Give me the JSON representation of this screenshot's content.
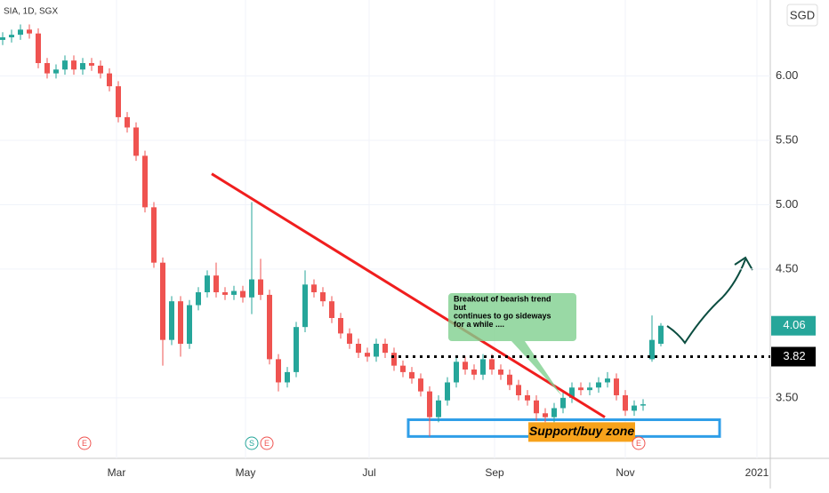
{
  "chart_data": {
    "type": "candlestick",
    "title": "SIA, 1D, SGX",
    "currency": "SGD",
    "up_color": "#26a69a",
    "down_color": "#ef5350",
    "open": [
      6.28,
      6.3,
      6.32,
      6.36,
      6.33,
      6.1,
      6.02,
      6.05,
      6.12,
      6.05,
      6.1,
      6.08,
      6.02,
      5.92,
      5.68,
      5.6,
      5.38,
      4.98,
      4.55,
      3.95,
      4.25,
      3.92,
      4.22,
      4.32,
      4.45,
      4.32,
      4.3,
      4.33,
      4.28,
      4.42,
      4.3,
      3.8,
      3.62,
      3.7,
      4.05,
      4.38,
      4.32,
      4.25,
      4.12,
      4.0,
      3.92,
      3.85,
      3.82,
      3.92,
      3.85,
      3.75,
      3.7,
      3.65,
      3.55,
      3.35,
      3.48,
      3.62,
      3.78,
      3.72,
      3.68,
      3.8,
      3.72,
      3.68,
      3.6,
      3.52,
      3.48,
      3.38,
      3.35,
      3.42,
      3.5,
      3.58,
      3.56,
      3.58,
      3.62,
      3.65,
      3.52,
      3.4,
      3.44,
      3.8,
      3.92
    ],
    "high": [
      6.34,
      6.36,
      6.4,
      6.4,
      6.37,
      6.14,
      6.09,
      6.16,
      6.16,
      6.14,
      6.14,
      6.12,
      6.06,
      5.96,
      5.72,
      5.64,
      5.42,
      5.02,
      4.59,
      4.29,
      4.29,
      4.26,
      4.36,
      4.49,
      4.55,
      4.36,
      4.37,
      4.37,
      5.02,
      4.58,
      4.34,
      3.84,
      3.74,
      4.09,
      4.49,
      4.42,
      4.36,
      4.29,
      4.16,
      4.04,
      3.96,
      3.89,
      3.96,
      3.96,
      3.89,
      3.79,
      3.74,
      3.69,
      3.59,
      3.52,
      3.66,
      3.82,
      3.82,
      3.76,
      3.84,
      3.84,
      3.76,
      3.72,
      3.64,
      3.56,
      3.52,
      3.42,
      3.46,
      3.54,
      3.62,
      3.62,
      3.62,
      3.66,
      3.7,
      3.69,
      3.56,
      3.48,
      3.49,
      4.14,
      4.08
    ],
    "low": [
      6.24,
      6.26,
      6.28,
      6.29,
      6.06,
      5.98,
      5.98,
      6.01,
      6.01,
      6.01,
      6.04,
      5.98,
      5.88,
      5.64,
      5.56,
      5.34,
      4.94,
      4.51,
      3.75,
      3.91,
      3.82,
      3.88,
      4.18,
      4.28,
      4.28,
      4.26,
      4.26,
      4.24,
      4.15,
      4.26,
      3.76,
      3.55,
      3.58,
      3.66,
      4.01,
      4.28,
      4.21,
      4.08,
      3.96,
      3.88,
      3.81,
      3.78,
      3.78,
      3.81,
      3.71,
      3.66,
      3.61,
      3.51,
      3.2,
      3.31,
      3.44,
      3.58,
      3.68,
      3.64,
      3.64,
      3.68,
      3.64,
      3.56,
      3.48,
      3.44,
      3.32,
      3.31,
      3.31,
      3.38,
      3.46,
      3.52,
      3.52,
      3.54,
      3.58,
      3.48,
      3.36,
      3.36,
      3.4,
      3.78,
      3.9
    ],
    "close": [
      6.3,
      6.32,
      6.36,
      6.33,
      6.1,
      6.02,
      6.05,
      6.12,
      6.05,
      6.1,
      6.08,
      6.02,
      5.92,
      5.68,
      5.6,
      5.38,
      4.98,
      4.55,
      3.95,
      4.25,
      3.92,
      4.22,
      4.32,
      4.45,
      4.32,
      4.3,
      4.33,
      4.28,
      4.42,
      4.3,
      3.8,
      3.62,
      3.7,
      4.05,
      4.38,
      4.32,
      4.25,
      4.12,
      4.0,
      3.92,
      3.85,
      3.82,
      3.92,
      3.85,
      3.75,
      3.7,
      3.65,
      3.55,
      3.35,
      3.48,
      3.62,
      3.78,
      3.72,
      3.68,
      3.8,
      3.72,
      3.68,
      3.6,
      3.52,
      3.48,
      3.38,
      3.35,
      3.42,
      3.5,
      3.58,
      3.56,
      3.58,
      3.62,
      3.65,
      3.52,
      3.4,
      3.44,
      3.45,
      3.95,
      4.06
    ],
    "xlim": [
      -0.3,
      86.3
    ],
    "xticks": [
      {
        "value": 12.8,
        "label": "Mar"
      },
      {
        "value": 27.3,
        "label": "May"
      },
      {
        "value": 41.2,
        "label": "Jul"
      },
      {
        "value": 55.3,
        "label": "Sep"
      },
      {
        "value": 70,
        "label": "Nov"
      },
      {
        "value": 84.8,
        "label": "2021"
      }
    ],
    "ylim": [
      3.03,
      6.59
    ],
    "yticks": [
      {
        "value": 3.5,
        "label": "3.50"
      },
      {
        "value": 4.5,
        "label": "4.50"
      },
      {
        "value": 5,
        "label": "5.00"
      },
      {
        "value": 5.5,
        "label": "5.50"
      },
      {
        "value": 6,
        "label": "6.00"
      }
    ],
    "grid": true,
    "last_price": {
      "value": 4.06,
      "label": "4.06",
      "color": "#26a69a"
    },
    "level": {
      "value": 3.82,
      "label": "3.82",
      "start": 43.7
    },
    "trendline": {
      "start": [
        23.5,
        5.24
      ],
      "end": [
        67.7,
        3.35
      ],
      "color": "#f01e1e"
    },
    "support_zone": {
      "label": "Support/buy zone",
      "xlim": [
        45.6,
        80.6
      ],
      "ylim": [
        3.2,
        3.33
      ],
      "color": "#2f9ee8",
      "label_color": "#f7a21b"
    },
    "callout": [
      "Breakout of bearish trend",
      "but",
      "continues to go sideways",
      "for a while ...."
    ],
    "events": [
      {
        "label": "E",
        "x": 9.2
      },
      {
        "label": "S",
        "x": 28
      },
      {
        "label": "E",
        "x": 29.7
      },
      {
        "label": "E",
        "x": 71.5
      }
    ]
  }
}
